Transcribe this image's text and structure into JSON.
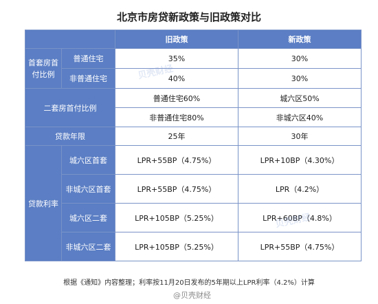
{
  "title": "北京市房贷新政策与旧政策对比",
  "header": {
    "blank": "",
    "old": "旧政策",
    "new": "新政策"
  },
  "first_home": {
    "label": "首套房首付比例",
    "rows": [
      {
        "type": "普通住宅",
        "old": "35%",
        "new": "30%"
      },
      {
        "type": "非普通住宅",
        "old": "40%",
        "new": "30%"
      }
    ]
  },
  "second_home": {
    "label": "二套房首付比例",
    "rows": [
      {
        "old": "普通住宅60%",
        "new": "城六区50%"
      },
      {
        "old": "非普通住宅80%",
        "new": "非城六区40%"
      }
    ]
  },
  "term": {
    "label": "贷款年限",
    "old": "25年",
    "new": "30年"
  },
  "rate": {
    "label": "贷款利率",
    "rows": [
      {
        "type": "城六区首套",
        "old": "LPR+55BP（4.75%）",
        "new": "LPR+10BP（4.30%）"
      },
      {
        "type": "非城六区首套",
        "old": "LPR+55BP（4.75%）",
        "new": "LPR（4.2%）"
      },
      {
        "type": "城六区二套",
        "old": "LPR+105BP（5.25%）",
        "new": "LPR+60BP（4.8%）"
      },
      {
        "type": "非城六区二套",
        "old": "LPR+105BP（5.25%）",
        "new": "LPR+55BP（4.75%）"
      }
    ]
  },
  "footnote": "根据《通知》内容整理；利率按11月20日发布的5年期以上LPR利率（4.2%）计算",
  "watermark": "贝壳财经",
  "credit": "@贝壳财经",
  "colors": {
    "header_blue": "#5b7ec4",
    "border": "#7a93c8"
  }
}
